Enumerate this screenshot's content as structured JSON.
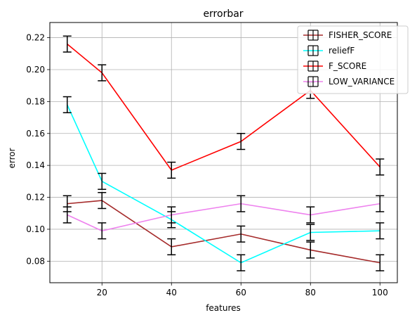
{
  "chart_data": {
    "type": "line",
    "title": "errorbar",
    "xlabel": "features",
    "ylabel": "error",
    "xlim": [
      5,
      105
    ],
    "ylim": [
      0.0665,
      0.2295
    ],
    "xticks": [
      20,
      40,
      60,
      80,
      100
    ],
    "yticks": [
      0.08,
      0.1,
      0.12,
      0.14,
      0.16,
      0.18,
      0.2,
      0.22
    ],
    "xtick_labels": [
      "20",
      "40",
      "60",
      "80",
      "100"
    ],
    "ytick_labels": [
      "0.08",
      "0.10",
      "0.12",
      "0.14",
      "0.16",
      "0.18",
      "0.20",
      "0.22"
    ],
    "grid": true,
    "legend_position": "top-right",
    "x": [
      10,
      20,
      40,
      60,
      80,
      100
    ],
    "series": [
      {
        "name": "FISHER_SCORE",
        "color": "#a52a2a",
        "values": [
          0.116,
          0.118,
          0.089,
          0.097,
          0.087,
          0.079
        ],
        "errors": [
          0.005,
          0.005,
          0.005,
          0.005,
          0.005,
          0.005
        ]
      },
      {
        "name": "reliefF",
        "color": "#00ffff",
        "values": [
          0.178,
          0.13,
          0.106,
          0.079,
          0.098,
          0.099
        ],
        "errors": [
          0.005,
          0.005,
          0.005,
          0.005,
          0.005,
          0.005
        ]
      },
      {
        "name": "F_SCORE",
        "color": "#ff0000",
        "values": [
          0.216,
          0.198,
          0.137,
          0.155,
          0.187,
          0.139
        ],
        "errors": [
          0.005,
          0.005,
          0.005,
          0.005,
          0.005,
          0.005
        ]
      },
      {
        "name": "LOW_VARIANCE",
        "color": "#ee82ee",
        "values": [
          0.109,
          0.099,
          0.109,
          0.116,
          0.109,
          0.116
        ],
        "errors": [
          0.005,
          0.005,
          0.005,
          0.005,
          0.005,
          0.005
        ]
      }
    ]
  }
}
